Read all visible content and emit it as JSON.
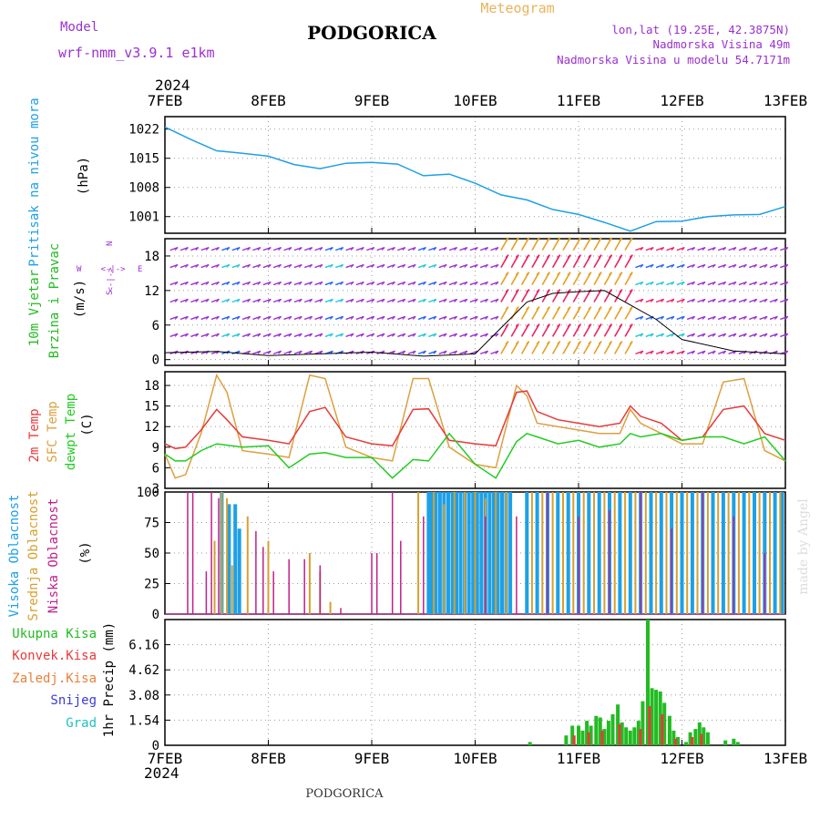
{
  "header": {
    "model_label": "Model",
    "model_name": "wrf-nmm_v3.9.1  e1km",
    "title": "PODGORICA",
    "meteogram_label": "Meteogram",
    "location": "lon,lat (19.25E, 42.3875N)",
    "altitude": "Nadmorska Visina 49m",
    "model_altitude": "Nadmorska Visina u modelu 54.7171m",
    "footer_title": "PODGORICA",
    "watermark": "made by Angel"
  },
  "time_axis": {
    "year": "2024",
    "ticks": [
      "7FEB",
      "8FEB",
      "9FEB",
      "10FEB",
      "11FEB",
      "12FEB",
      "13FEB"
    ]
  },
  "compass": {
    "n": "N",
    "s": "S",
    "w": "W",
    "e": "E",
    "arrows": "<-|->"
  },
  "colors": {
    "pressure": "#1ea0e6",
    "wind_labels": "#22bb22",
    "wind_purple": "#9b30d0",
    "wind_cyan": "#1ec8d8",
    "wind_blue": "#2060ff",
    "wind_orange": "#e6a020",
    "wind_red": "#ee2060",
    "wind_speed": "#000000",
    "temp2m": "#e83a3a",
    "sfc_temp": "#dca040",
    "dewpt": "#22cc22",
    "cloud_high": "#1ea0e6",
    "cloud_mid": "#d6a030",
    "cloud_low": "#c0208c",
    "precip_total": "#22bb22",
    "precip_conv": "#e83a3a",
    "precip_large": "#e8803a",
    "precip_snow": "#3a3adc",
    "precip_grad": "#22c0c0"
  },
  "panels": {
    "pressure": {
      "label": "Pritisak na nivou mora",
      "unit": "(hPa)",
      "yticks": [
        "1022",
        "1015",
        "1008",
        "1001"
      ]
    },
    "wind": {
      "labels": [
        "10m Vjetar",
        "Brzina i Pravac"
      ],
      "unit": "(m/s)",
      "yticks": [
        "18",
        "12",
        "6",
        "0"
      ]
    },
    "temp": {
      "labels": [
        "2m Temp",
        "SFC Temp",
        "dewpt Temp"
      ],
      "unit": "(C)",
      "yticks": [
        "18",
        "15",
        "12",
        "9",
        "6",
        "3"
      ]
    },
    "cloud": {
      "labels": [
        "Visoka Oblacnost",
        "Srednja Oblacnost",
        "Niska Oblacnost"
      ],
      "unit": "(%)",
      "yticks": [
        "100",
        "75",
        "50",
        "25",
        "0"
      ]
    },
    "precip": {
      "legend": [
        "Ukupna Kisa",
        "Konvek.Kisa",
        "Zaledj.Kisa",
        "Snijeg",
        "Grad"
      ],
      "unit": "1hr Precip (mm)",
      "yticks": [
        "6.16",
        "4.62",
        "3.08",
        "1.54",
        "0"
      ]
    }
  },
  "chart_data": [
    {
      "type": "line",
      "panel": "pressure",
      "ylabel": "Pritisak na nivou mora (hPa)",
      "ylim": [
        997,
        1025
      ],
      "grid": true,
      "x": [
        0,
        0.25,
        0.5,
        0.75,
        1.0,
        1.25,
        1.5,
        1.75,
        2.0,
        2.25,
        2.5,
        2.75,
        3.0,
        3.25,
        3.5,
        3.75,
        4.0,
        4.25,
        4.5,
        4.75,
        5.0,
        5.25,
        5.5,
        5.75,
        6.0
      ],
      "series": [
        {
          "values": [
            1022.5,
            1019.5,
            1016.8,
            1016.2,
            1015.5,
            1013.5,
            1012.5,
            1013.8,
            1014.0,
            1013.6,
            1010.8,
            1011.2,
            1009.0,
            1006.2,
            1005.0,
            1002.7,
            1001.5,
            999.6,
            997.5,
            999.8,
            999.9,
            1001.0,
            1001.4,
            1001.5,
            1003.4
          ]
        }
      ]
    },
    {
      "type": "line",
      "panel": "wind",
      "ylabel": "10m Vjetar Brzina i Pravac (m/s)",
      "ylim": [
        -1,
        21
      ],
      "grid": true,
      "x": [
        0,
        0.5,
        1.0,
        1.5,
        2.0,
        2.5,
        3.0,
        3.25,
        3.5,
        3.75,
        4.0,
        4.25,
        4.5,
        4.75,
        5.0,
        5.5,
        6.0
      ],
      "series": [
        {
          "values": [
            1.2,
            1.4,
            0.7,
            1.0,
            1.3,
            0.6,
            1.0,
            5.5,
            10.0,
            11.5,
            11.8,
            12.0,
            9.5,
            7.0,
            3.5,
            1.5,
            1.0
          ]
        }
      ],
      "wind_regimes": [
        {
          "from": 0,
          "to": 3.25,
          "style": "light purple barbs with cyan/blue gust fans near 7.6, 8.6, 9.6 FEB"
        },
        {
          "from": 3.25,
          "to": 4.55,
          "style": "dense orange/red strong-wind band"
        },
        {
          "from": 4.55,
          "to": 5.0,
          "style": "mixed cyan/blue/red"
        },
        {
          "from": 5.0,
          "to": 6.0,
          "style": "light purple/blue barbs"
        }
      ]
    },
    {
      "type": "line",
      "panel": "temp",
      "ylabel": "(C)",
      "ylim": [
        3,
        20
      ],
      "grid": true,
      "x": [
        0,
        0.1,
        0.2,
        0.35,
        0.5,
        0.6,
        0.75,
        1.0,
        1.2,
        1.4,
        1.55,
        1.75,
        2.0,
        2.2,
        2.4,
        2.55,
        2.75,
        3.0,
        3.2,
        3.4,
        3.5,
        3.6,
        3.8,
        4.0,
        4.2,
        4.4,
        4.5,
        4.6,
        4.8,
        5.0,
        5.2,
        5.4,
        5.6,
        5.8,
        6.0
      ],
      "series": [
        {
          "name": "2m Temp",
          "values": [
            9.5,
            8.8,
            9.0,
            11.5,
            14.5,
            13.0,
            10.5,
            10.0,
            9.5,
            14.2,
            14.8,
            10.5,
            9.5,
            9.2,
            14.5,
            14.6,
            10.0,
            9.5,
            9.2,
            17.0,
            17.2,
            14.2,
            13.0,
            12.5,
            12.0,
            12.5,
            15.0,
            13.5,
            12.5,
            10.0,
            10.5,
            14.5,
            15.0,
            11.0,
            10.0
          ]
        },
        {
          "name": "SFC Temp",
          "values": [
            8.0,
            4.5,
            5.0,
            11.0,
            19.5,
            17.0,
            8.5,
            8.0,
            7.5,
            19.5,
            19.0,
            9.0,
            7.5,
            7.0,
            19.0,
            19.0,
            9.0,
            6.5,
            6.0,
            18.0,
            16.5,
            12.5,
            12.0,
            11.5,
            11.0,
            11.0,
            14.5,
            12.5,
            11.0,
            9.5,
            9.5,
            18.5,
            19.0,
            8.5,
            7.0
          ]
        },
        {
          "name": "dewpt Temp",
          "values": [
            8.0,
            7.0,
            7.0,
            8.5,
            9.5,
            9.3,
            9.0,
            9.2,
            6.0,
            8.0,
            8.2,
            7.5,
            7.5,
            4.5,
            7.2,
            7.0,
            11.0,
            6.5,
            4.5,
            9.8,
            11.0,
            10.5,
            9.5,
            10.0,
            9.0,
            9.5,
            11.0,
            10.5,
            11.0,
            10.0,
            10.5,
            10.5,
            9.5,
            10.5,
            7.0
          ]
        }
      ]
    },
    {
      "type": "bar",
      "panel": "cloud",
      "ylabel": "(%)",
      "ylim": [
        0,
        100
      ],
      "grid": true,
      "series": [
        {
          "name": "Visoka Oblacnost",
          "x": [
            0.55,
            0.62,
            0.68,
            0.72,
            2.55,
            2.58,
            2.62,
            2.66,
            2.7,
            2.74,
            2.78,
            2.82,
            2.86,
            2.9,
            2.94,
            2.98,
            3.02,
            3.06,
            3.1,
            3.14,
            3.18,
            3.22,
            3.26,
            3.3,
            3.34,
            3.5,
            3.6,
            3.7,
            3.8,
            3.9,
            4.0,
            4.1,
            4.2,
            4.3,
            4.4,
            4.5,
            4.6,
            4.7,
            4.8,
            4.9,
            5.0,
            5.1,
            5.2,
            5.3,
            5.4,
            5.5,
            5.6,
            5.7,
            5.8,
            5.9,
            5.97
          ],
          "values": [
            100,
            90,
            90,
            70,
            100,
            100,
            100,
            100,
            100,
            100,
            100,
            100,
            100,
            100,
            100,
            100,
            100,
            100,
            100,
            100,
            100,
            100,
            100,
            100,
            100,
            100,
            100,
            100,
            100,
            100,
            100,
            100,
            100,
            100,
            100,
            100,
            100,
            100,
            100,
            100,
            100,
            100,
            100,
            100,
            100,
            100,
            100,
            100,
            100,
            100,
            100
          ]
        },
        {
          "name": "Srednja Oblacnost",
          "x": [
            0.48,
            0.55,
            0.6,
            0.65,
            0.8,
            1.0,
            1.4,
            1.5,
            1.6,
            2.45,
            2.6,
            2.7,
            2.8,
            2.9,
            3.0,
            3.1,
            3.2,
            3.3,
            3.55,
            3.65,
            3.75,
            3.85,
            3.95,
            4.05,
            4.15,
            4.25,
            4.35,
            4.45,
            4.55,
            4.65,
            4.75,
            4.85,
            4.95,
            5.05,
            5.15,
            5.25,
            5.35,
            5.45,
            5.55,
            5.65,
            5.75,
            5.85,
            5.95
          ],
          "values": [
            60,
            100,
            95,
            40,
            80,
            60,
            50,
            35,
            10,
            100,
            100,
            90,
            100,
            100,
            100,
            95,
            100,
            100,
            100,
            100,
            100,
            100,
            100,
            100,
            100,
            100,
            100,
            100,
            100,
            100,
            100,
            100,
            100,
            100,
            100,
            100,
            100,
            100,
            100,
            100,
            100,
            100,
            100
          ]
        },
        {
          "name": "Niska Oblacnost",
          "x": [
            0.22,
            0.27,
            0.4,
            0.45,
            0.52,
            0.88,
            0.95,
            1.05,
            1.2,
            1.35,
            1.5,
            1.7,
            2.0,
            2.05,
            2.2,
            2.28,
            2.5,
            3.1,
            3.4,
            3.7,
            4.0,
            4.3,
            4.6,
            4.9,
            5.2,
            5.5,
            5.8
          ],
          "values": [
            100,
            100,
            35,
            100,
            95,
            68,
            55,
            35,
            45,
            45,
            40,
            5,
            50,
            50,
            100,
            60,
            80,
            80,
            80,
            100,
            80,
            85,
            100,
            70,
            100,
            80,
            50
          ]
        }
      ]
    },
    {
      "type": "bar",
      "panel": "precip",
      "ylabel": "1hr Precip (mm)",
      "ylim": [
        0,
        7.7
      ],
      "grid": true,
      "series": [
        {
          "name": "Ukupna Kisa",
          "x": [
            3.53,
            3.88,
            3.94,
            4.0,
            4.04,
            4.08,
            4.12,
            4.17,
            4.21,
            4.25,
            4.29,
            4.33,
            4.38,
            4.42,
            4.46,
            4.5,
            4.54,
            4.58,
            4.62,
            4.67,
            4.71,
            4.75,
            4.79,
            4.83,
            4.88,
            4.92,
            4.96,
            5.04,
            5.08,
            5.13,
            5.17,
            5.21,
            5.25,
            5.42,
            5.5,
            5.54
          ],
          "values": [
            0.2,
            0.6,
            1.2,
            1.2,
            0.9,
            1.5,
            1.2,
            1.8,
            1.7,
            1.0,
            1.5,
            1.9,
            2.5,
            1.4,
            1.1,
            0.9,
            1.1,
            1.5,
            2.7,
            7.7,
            3.5,
            3.4,
            3.3,
            2.6,
            1.8,
            0.9,
            0.5,
            0.2,
            0.8,
            1.0,
            1.4,
            1.1,
            0.8,
            0.3,
            0.4,
            0.2
          ]
        },
        {
          "name": "Konvek.Kisa",
          "x": [
            3.94,
            4.08,
            4.21,
            4.38,
            4.58,
            4.67,
            4.79,
            4.92,
            5.08,
            5.17
          ],
          "values": [
            0.6,
            0.8,
            0.9,
            1.3,
            1.0,
            2.4,
            1.9,
            0.4,
            0.5,
            0.7
          ]
        }
      ]
    }
  ]
}
